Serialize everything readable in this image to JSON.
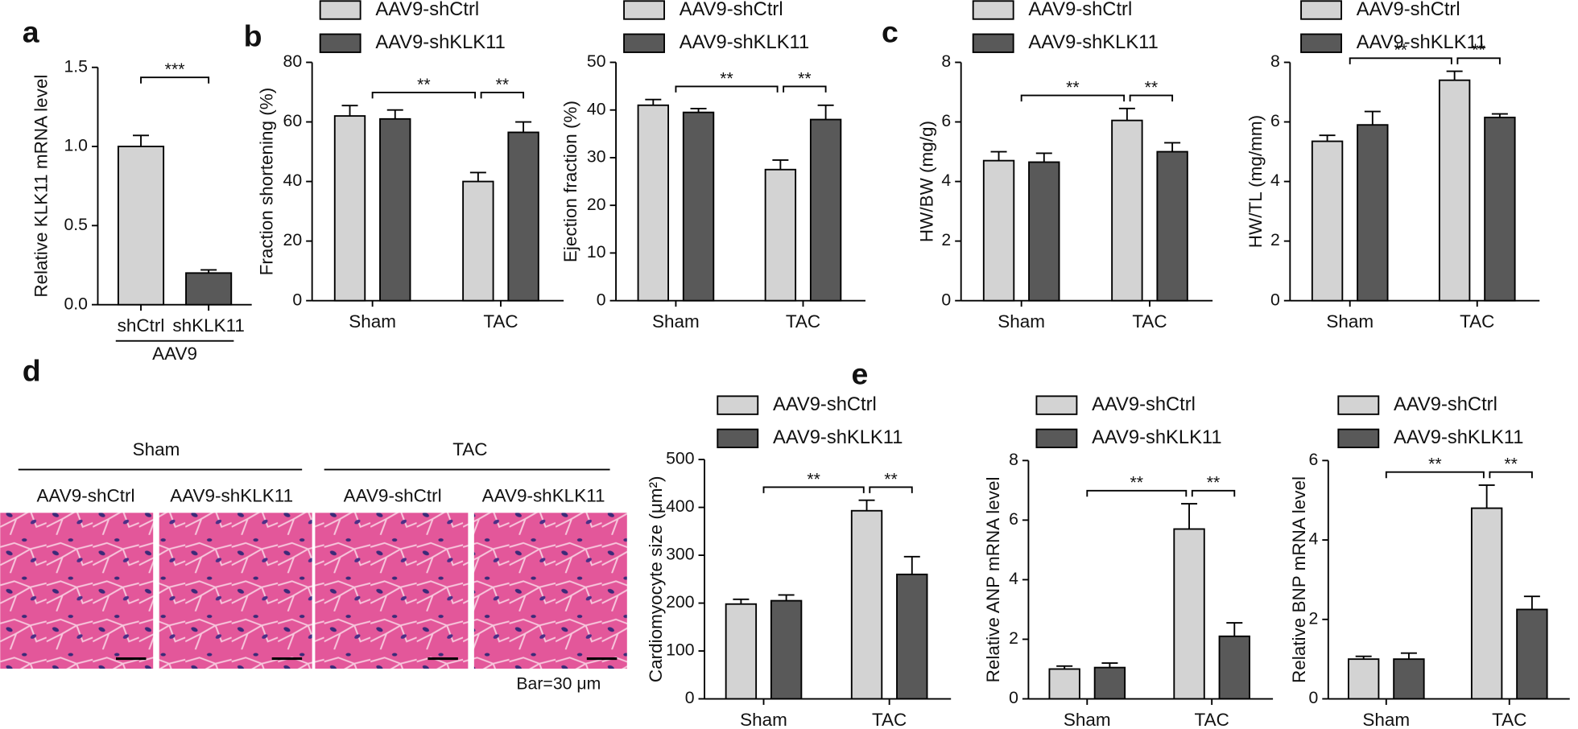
{
  "panel_labels": [
    "a",
    "b",
    "c",
    "d",
    "e"
  ],
  "histology": {
    "groups": [
      {
        "title": "Sham",
        "labels": [
          "AAV9-shCtrl",
          "AAV9-shKLK11"
        ]
      },
      {
        "title": "TAC",
        "labels": [
          "AAV9-shCtrl",
          "AAV9-shKLK11"
        ]
      }
    ],
    "scale_note": "Bar=30 μm"
  },
  "chart_data": [
    {
      "type": "bar",
      "categories": [
        "shCtrl",
        "shKLK11"
      ],
      "group_label": "AAV9",
      "y_label": "Relative KLK11 mRNA level",
      "values": [
        1.0,
        0.2
      ],
      "errors": [
        0.07,
        0.02
      ],
      "color": "#d3d3d3",
      "colors": [
        "#d3d3d3",
        "#595959"
      ],
      "ylim": [
        0,
        1.5
      ],
      "yticks": [
        {
          "value": 0,
          "label": "0.0"
        },
        0.5,
        {
          "value": 1,
          "label": "1.0"
        },
        1.5
      ],
      "annotations": [
        "***"
      ]
    },
    {
      "type": "grouped_bar",
      "categories": [
        "Sham",
        "TAC"
      ],
      "y_label": "Fraction shortening (%)",
      "series": [
        {
          "name": "AAV9-shCtrl",
          "color": "#d3d3d3",
          "values": [
            62,
            40
          ],
          "errors": [
            3.5,
            3
          ]
        },
        {
          "name": "AAV9-shKLK11",
          "color": "#595959",
          "values": [
            61,
            56.5
          ],
          "errors": [
            3,
            3.5
          ]
        }
      ],
      "ylim": [
        0,
        80
      ],
      "yticks": [
        0,
        20,
        40,
        60,
        80
      ],
      "annotations": [
        "**",
        "**"
      ]
    },
    {
      "type": "grouped_bar",
      "categories": [
        "Sham",
        "TAC"
      ],
      "y_label": "Ejection fraction (%)",
      "series": [
        {
          "name": "AAV9-shCtrl",
          "color": "#d3d3d3",
          "values": [
            41,
            27.5
          ],
          "errors": [
            1.2,
            2
          ]
        },
        {
          "name": "AAV9-shKLK11",
          "color": "#595959",
          "values": [
            39.5,
            38
          ],
          "errors": [
            0.8,
            3
          ]
        }
      ],
      "ylim": [
        0,
        50
      ],
      "yticks": [
        0,
        10,
        20,
        30,
        40,
        50
      ],
      "annotations": [
        "**",
        "**"
      ]
    },
    {
      "type": "grouped_bar",
      "categories": [
        "Sham",
        "TAC"
      ],
      "y_label": "HW/BW (mg/g)",
      "series": [
        {
          "name": "AAV9-shCtrl",
          "color": "#d3d3d3",
          "values": [
            4.7,
            6.05
          ],
          "errors": [
            0.3,
            0.4
          ]
        },
        {
          "name": "AAV9-shKLK11",
          "color": "#595959",
          "values": [
            4.65,
            5.0
          ],
          "errors": [
            0.3,
            0.3
          ]
        }
      ],
      "ylim": [
        0,
        8
      ],
      "yticks": [
        0,
        2,
        4,
        6,
        8
      ],
      "annotations": [
        "**",
        "**"
      ]
    },
    {
      "type": "grouped_bar",
      "categories": [
        "Sham",
        "TAC"
      ],
      "y_label": "HW/TL (mg/mm)",
      "series": [
        {
          "name": "AAV9-shCtrl",
          "color": "#d3d3d3",
          "values": [
            5.35,
            7.4
          ],
          "errors": [
            0.2,
            0.3
          ]
        },
        {
          "name": "AAV9-shKLK11",
          "color": "#595959",
          "values": [
            5.9,
            6.15
          ],
          "errors": [
            0.45,
            0.12
          ]
        }
      ],
      "ylim": [
        0,
        8
      ],
      "yticks": [
        0,
        2,
        4,
        6,
        8
      ],
      "annotations": [
        "**",
        "**"
      ]
    },
    {
      "type": "grouped_bar",
      "categories": [
        "Sham",
        "TAC"
      ],
      "y_label": "Cardiomyocyte size (μm²)",
      "series": [
        {
          "name": "AAV9-shCtrl",
          "color": "#d3d3d3",
          "values": [
            198,
            393
          ],
          "errors": [
            10,
            22
          ]
        },
        {
          "name": "AAV9-shKLK11",
          "color": "#595959",
          "values": [
            205,
            260
          ],
          "errors": [
            12,
            37
          ]
        }
      ],
      "ylim": [
        0,
        500
      ],
      "yticks": [
        0,
        100,
        200,
        300,
        400,
        500
      ],
      "annotations": [
        "**",
        "**"
      ]
    },
    {
      "type": "grouped_bar",
      "categories": [
        "Sham",
        "TAC"
      ],
      "y_label": "Relative ANP mRNA level",
      "series": [
        {
          "name": "AAV9-shCtrl",
          "color": "#d3d3d3",
          "values": [
            1.0,
            5.7
          ],
          "errors": [
            0.1,
            0.85
          ]
        },
        {
          "name": "AAV9-shKLK11",
          "color": "#595959",
          "values": [
            1.05,
            2.1
          ],
          "errors": [
            0.15,
            0.45
          ]
        }
      ],
      "ylim": [
        0,
        8
      ],
      "yticks": [
        0,
        2,
        4,
        6,
        8
      ],
      "annotations": [
        "**",
        "**"
      ]
    },
    {
      "type": "grouped_bar",
      "categories": [
        "Sham",
        "TAC"
      ],
      "y_label": "Relative BNP mRNA level",
      "series": [
        {
          "name": "AAV9-shCtrl",
          "color": "#d3d3d3",
          "values": [
            1.0,
            4.8
          ],
          "errors": [
            0.07,
            0.58
          ]
        },
        {
          "name": "AAV9-shKLK11",
          "color": "#595959",
          "values": [
            1.0,
            2.25
          ],
          "errors": [
            0.15,
            0.33
          ]
        }
      ],
      "ylim": [
        0,
        6
      ],
      "yticks": [
        0,
        2,
        4,
        6
      ],
      "annotations": [
        "**",
        "**"
      ]
    }
  ]
}
